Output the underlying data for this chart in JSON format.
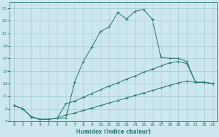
{
  "xlabel": "Humidex (Indice chaleur)",
  "background_color": "#cce8ee",
  "grid_color": "#a0c4cc",
  "line_color": "#2e7d6e",
  "xlim": [
    -0.5,
    23.5
  ],
  "ylim": [
    7,
    26
  ],
  "yticks": [
    7,
    9,
    11,
    13,
    15,
    17,
    19,
    21,
    23,
    25
  ],
  "xticks": [
    0,
    1,
    2,
    3,
    4,
    5,
    6,
    7,
    8,
    9,
    10,
    11,
    12,
    13,
    14,
    15,
    16,
    17,
    18,
    19,
    20,
    21,
    22,
    23
  ],
  "line1_x": [
    0,
    1,
    2,
    3,
    4,
    5,
    6,
    7,
    8,
    9,
    10,
    11,
    12,
    13,
    14,
    15,
    16,
    17,
    18,
    19,
    20,
    21,
    22,
    23
  ],
  "line1_y": [
    9.5,
    9.0,
    7.7,
    7.3,
    7.3,
    7.5,
    7.5,
    13.2,
    16.5,
    18.8,
    21.3,
    22.0,
    24.3,
    23.3,
    24.5,
    24.8,
    23.2,
    17.2,
    17.0,
    17.0,
    16.5,
    13.2,
    13.2,
    13.0
  ],
  "line2_x": [
    0,
    1,
    2,
    3,
    4,
    5,
    6,
    7,
    8,
    9,
    10,
    11,
    12,
    13,
    14,
    15,
    16,
    17,
    18,
    19,
    20,
    21,
    22,
    23
  ],
  "line2_y": [
    9.5,
    9.0,
    7.7,
    7.3,
    7.3,
    7.5,
    9.8,
    10.2,
    10.8,
    11.4,
    12.0,
    12.6,
    13.1,
    13.7,
    14.2,
    14.8,
    15.3,
    15.8,
    16.3,
    16.5,
    16.2,
    13.2,
    13.2,
    13.0
  ],
  "line3_x": [
    0,
    1,
    2,
    3,
    4,
    5,
    6,
    7,
    8,
    9,
    10,
    11,
    12,
    13,
    14,
    15,
    16,
    17,
    18,
    19,
    20,
    21,
    22,
    23
  ],
  "line3_y": [
    9.5,
    9.0,
    7.7,
    7.3,
    7.3,
    7.5,
    8.0,
    8.3,
    8.7,
    9.1,
    9.5,
    9.9,
    10.3,
    10.7,
    11.1,
    11.5,
    11.9,
    12.3,
    12.7,
    13.1,
    13.4,
    13.2,
    13.2,
    13.0
  ]
}
